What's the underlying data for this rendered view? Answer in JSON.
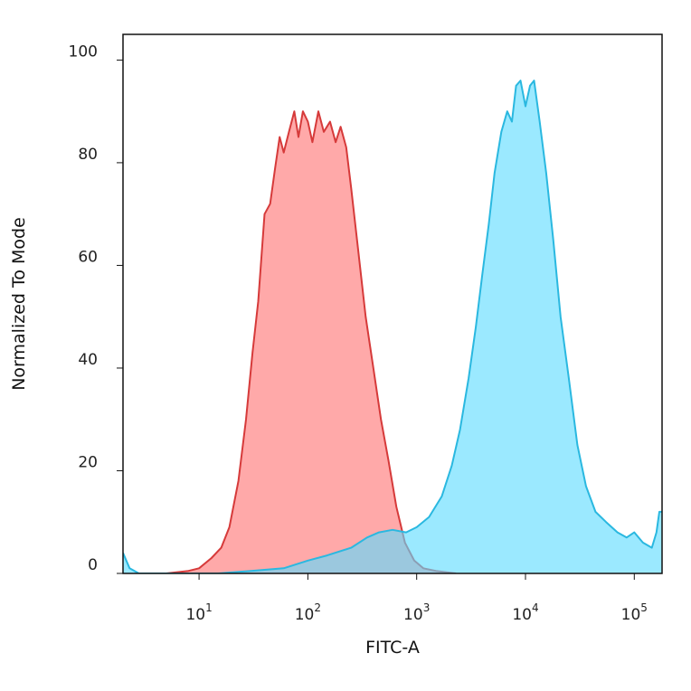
{
  "chart_data": {
    "type": "area",
    "title": "",
    "xlabel": "FITC-A",
    "ylabel": "Normalized To Mode",
    "xscale": "log",
    "xlim": [
      2,
      180000
    ],
    "ylim": [
      0,
      105
    ],
    "grid": false,
    "legend": "none",
    "y_ticks": [
      {
        "value": 0,
        "label": "0"
      },
      {
        "value": 20,
        "label": "20"
      },
      {
        "value": 40,
        "label": "40"
      },
      {
        "value": 60,
        "label": "60"
      },
      {
        "value": 80,
        "label": "80"
      },
      {
        "value": 100,
        "label": "100"
      }
    ],
    "x_ticks": [
      {
        "value": 10,
        "base": "10",
        "exp": "1"
      },
      {
        "value": 100,
        "base": "10",
        "exp": "2"
      },
      {
        "value": 1000,
        "base": "10",
        "exp": "3"
      },
      {
        "value": 10000,
        "base": "10",
        "exp": "4"
      },
      {
        "value": 100000,
        "base": "10",
        "exp": "5"
      }
    ],
    "series": [
      {
        "fill": "#ff9a9a",
        "stroke": "#d63a3a",
        "points": [
          [
            5,
            0
          ],
          [
            8,
            0.5
          ],
          [
            10,
            1
          ],
          [
            13,
            3
          ],
          [
            16,
            5
          ],
          [
            19,
            9
          ],
          [
            23,
            18
          ],
          [
            27,
            30
          ],
          [
            31,
            43
          ],
          [
            35,
            53
          ],
          [
            40,
            70
          ],
          [
            45,
            72
          ],
          [
            50,
            79
          ],
          [
            55,
            85
          ],
          [
            60,
            82
          ],
          [
            67,
            86
          ],
          [
            75,
            90
          ],
          [
            82,
            85
          ],
          [
            90,
            90
          ],
          [
            100,
            88
          ],
          [
            110,
            84
          ],
          [
            125,
            90
          ],
          [
            140,
            86
          ],
          [
            160,
            88
          ],
          [
            180,
            84
          ],
          [
            200,
            87
          ],
          [
            225,
            83
          ],
          [
            250,
            75
          ],
          [
            290,
            63
          ],
          [
            340,
            50
          ],
          [
            400,
            40
          ],
          [
            470,
            30
          ],
          [
            550,
            22
          ],
          [
            650,
            13
          ],
          [
            780,
            6
          ],
          [
            950,
            2.5
          ],
          [
            1150,
            1
          ],
          [
            1500,
            0.5
          ],
          [
            2300,
            0
          ]
        ]
      },
      {
        "fill": "#5edcff",
        "stroke": "#2ab8e0",
        "points": [
          [
            2,
            4
          ],
          [
            2.3,
            1
          ],
          [
            2.8,
            0
          ],
          [
            15,
            0
          ],
          [
            30,
            0.5
          ],
          [
            60,
            1
          ],
          [
            100,
            2.5
          ],
          [
            150,
            3.5
          ],
          [
            250,
            5
          ],
          [
            350,
            7
          ],
          [
            450,
            8
          ],
          [
            600,
            8.5
          ],
          [
            800,
            8
          ],
          [
            1000,
            9
          ],
          [
            1300,
            11
          ],
          [
            1700,
            15
          ],
          [
            2100,
            21
          ],
          [
            2500,
            28
          ],
          [
            3000,
            38
          ],
          [
            3500,
            48
          ],
          [
            4000,
            58
          ],
          [
            4600,
            68
          ],
          [
            5200,
            78
          ],
          [
            6000,
            86
          ],
          [
            6800,
            90
          ],
          [
            7500,
            88
          ],
          [
            8200,
            95
          ],
          [
            9000,
            96
          ],
          [
            10000,
            91
          ],
          [
            11000,
            95
          ],
          [
            12000,
            96
          ],
          [
            13500,
            88
          ],
          [
            15500,
            78
          ],
          [
            18000,
            65
          ],
          [
            21000,
            50
          ],
          [
            25000,
            38
          ],
          [
            30000,
            25
          ],
          [
            36000,
            17
          ],
          [
            44000,
            12
          ],
          [
            55000,
            10
          ],
          [
            70000,
            8
          ],
          [
            85000,
            7
          ],
          [
            100000,
            8
          ],
          [
            120000,
            6
          ],
          [
            145000,
            5
          ],
          [
            160000,
            8
          ],
          [
            170000,
            12
          ],
          [
            180000,
            12
          ]
        ]
      }
    ]
  }
}
